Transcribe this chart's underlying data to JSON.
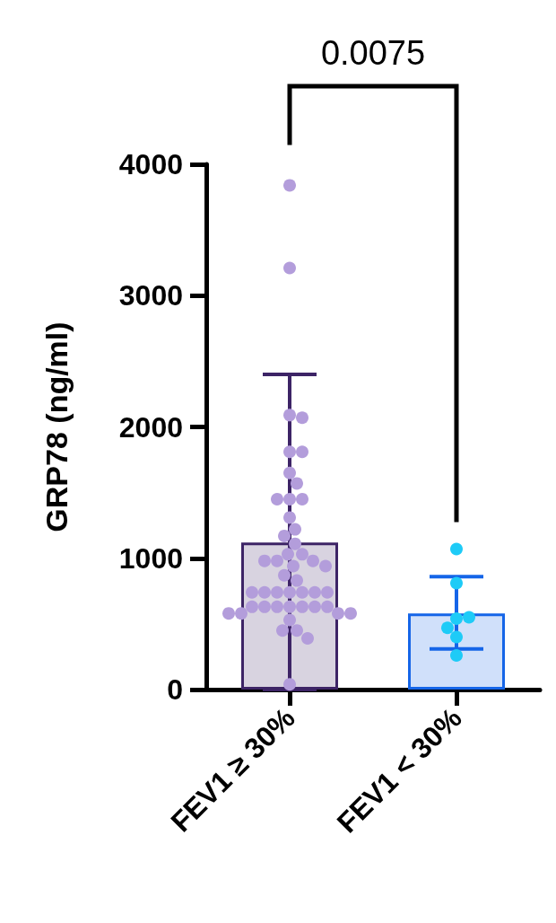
{
  "chart_data": {
    "type": "bar",
    "ylabel": "GRP78 (ng/ml)",
    "categories": [
      "FEV1 ≥ 30%",
      "FEV1 < 30%"
    ],
    "ylim": [
      0,
      4000
    ],
    "yticks": [
      0,
      1000,
      2000,
      3000,
      4000
    ],
    "grid": false,
    "marker": "circle",
    "annotations": [
      "0.0075"
    ],
    "series": [
      {
        "type": "bar",
        "colors": [
          "#3d2466",
          "#1565e8"
        ],
        "values": [
          1120,
          580
        ],
        "errors": [
          [
            0,
            2400
          ],
          [
            310,
            860
          ]
        ]
      },
      {
        "type": "scatter",
        "color": "#b39ddb",
        "x": [
          "FEV1 ≥ 30%",
          "FEV1 ≥ 30%",
          "FEV1 ≥ 30%",
          "FEV1 ≥ 30%",
          "FEV1 ≥ 30%",
          "FEV1 ≥ 30%",
          "FEV1 ≥ 30%",
          "FEV1 ≥ 30%",
          "FEV1 ≥ 30%",
          "FEV1 ≥ 30%",
          "FEV1 ≥ 30%",
          "FEV1 ≥ 30%",
          "FEV1 ≥ 30%",
          "FEV1 ≥ 30%",
          "FEV1 ≥ 30%",
          "FEV1 ≥ 30%",
          "FEV1 ≥ 30%",
          "FEV1 ≥ 30%",
          "FEV1 ≥ 30%",
          "FEV1 ≥ 30%",
          "FEV1 ≥ 30%",
          "FEV1 ≥ 30%",
          "FEV1 ≥ 30%",
          "FEV1 ≥ 30%",
          "FEV1 ≥ 30%",
          "FEV1 ≥ 30%",
          "FEV1 ≥ 30%",
          "FEV1 ≥ 30%",
          "FEV1 ≥ 30%",
          "FEV1 ≥ 30%",
          "FEV1 ≥ 30%",
          "FEV1 ≥ 30%",
          "FEV1 ≥ 30%",
          "FEV1 ≥ 30%",
          "FEV1 ≥ 30%",
          "FEV1 ≥ 30%",
          "FEV1 ≥ 30%",
          "FEV1 ≥ 30%",
          "FEV1 ≥ 30%",
          "FEV1 ≥ 30%",
          "FEV1 ≥ 30%",
          "FEV1 ≥ 30%",
          "FEV1 ≥ 30%",
          "FEV1 ≥ 30%",
          "FEV1 ≥ 30%",
          "FEV1 ≥ 30%",
          "FEV1 ≥ 30%"
        ],
        "values": [
          3840,
          3210,
          2090,
          2070,
          1810,
          1810,
          1650,
          1570,
          1450,
          1450,
          1450,
          1310,
          1220,
          1170,
          1110,
          1030,
          1030,
          980,
          980,
          980,
          940,
          940,
          870,
          830,
          740,
          740,
          740,
          740,
          740,
          740,
          740,
          630,
          630,
          630,
          630,
          630,
          630,
          630,
          580,
          580,
          580,
          580,
          530,
          450,
          450,
          390,
          40
        ]
      },
      {
        "type": "scatter",
        "color": "#1ecbf7",
        "x": [
          "FEV1 < 30%",
          "FEV1 < 30%",
          "FEV1 < 30%",
          "FEV1 < 30%",
          "FEV1 < 30%",
          "FEV1 < 30%",
          "FEV1 < 30%"
        ],
        "values": [
          1070,
          810,
          540,
          550,
          470,
          400,
          260
        ]
      }
    ]
  }
}
